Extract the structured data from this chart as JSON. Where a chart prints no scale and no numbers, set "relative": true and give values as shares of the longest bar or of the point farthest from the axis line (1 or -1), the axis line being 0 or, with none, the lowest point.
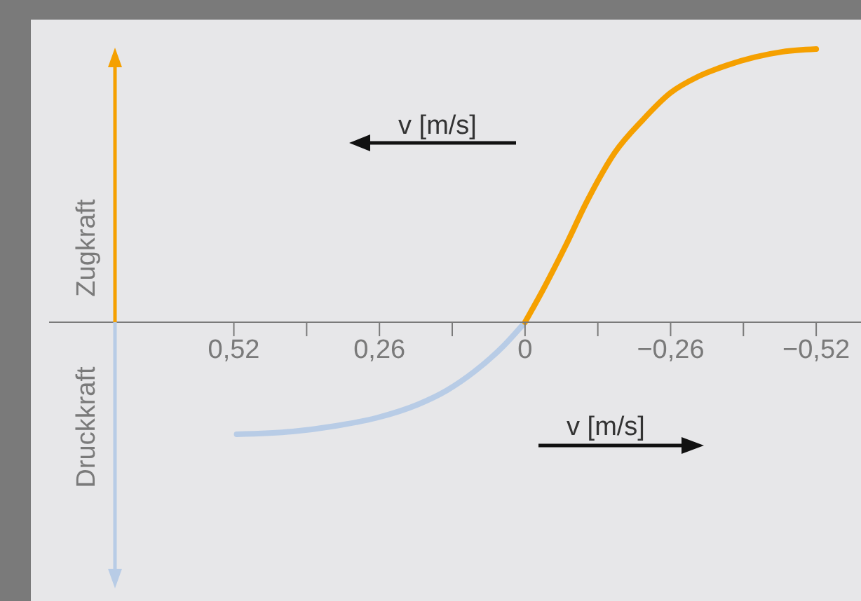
{
  "chart_data": {
    "type": "line",
    "relative": true,
    "xlim": [
      0.85,
      -0.6
    ],
    "xticks": [
      {
        "value": 0.52,
        "label": "0,52"
      },
      {
        "value": 0.39,
        "label": null
      },
      {
        "value": 0.26,
        "label": "0,26"
      },
      {
        "value": 0.13,
        "label": null
      },
      {
        "value": 0,
        "label": "0"
      },
      {
        "value": -0.13,
        "label": null
      },
      {
        "value": -0.26,
        "label": "−0,26"
      },
      {
        "value": -0.39,
        "label": null
      },
      {
        "value": -0.52,
        "label": "−0,52"
      }
    ],
    "annotations": [
      "Zugkraft",
      "Druckkraft",
      "v [m/s]",
      "v [m/s]"
    ],
    "series": [
      {
        "color": "#f5a000",
        "x": [
          0,
          -0.035,
          -0.0725,
          -0.11,
          -0.16,
          -0.21,
          -0.26,
          -0.31,
          -0.36,
          -0.41,
          -0.46,
          -0.52
        ],
        "values": [
          0,
          0.13,
          0.28,
          0.44,
          0.62,
          0.74,
          0.84,
          0.9,
          0.94,
          0.97,
          0.99,
          1
        ]
      },
      {
        "color": "#b8cce6",
        "x": [
          0,
          0.04,
          0.09,
          0.14,
          0.19,
          0.265,
          0.34,
          0.415,
          0.515
        ],
        "values": [
          0,
          -0.09,
          -0.18,
          -0.25,
          -0.3,
          -0.35,
          -0.38,
          -0.4,
          -0.41
        ]
      }
    ],
    "marker": "none",
    "line_style": "solid"
  }
}
